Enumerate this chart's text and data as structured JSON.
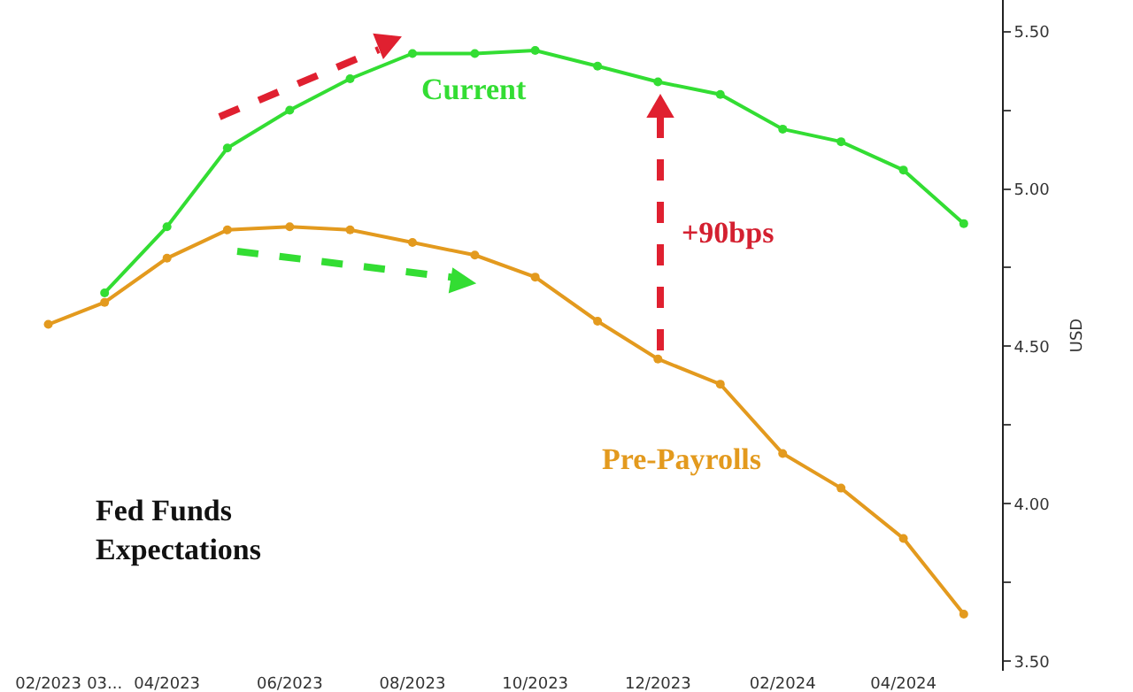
{
  "chart_data": {
    "type": "line",
    "ylabel": "USD",
    "x": [
      "2023-02",
      "2023-03",
      "2023-04",
      "2023-05",
      "2023-06",
      "2023-07",
      "2023-08",
      "2023-09",
      "2023-10",
      "2023-11",
      "2023-12",
      "2024-01",
      "2024-02",
      "2024-03",
      "2024-04",
      "2024-05"
    ],
    "series": [
      {
        "name": "Current",
        "color": "#33dd33",
        "values": [
          null,
          4.67,
          4.88,
          5.13,
          5.25,
          5.35,
          5.43,
          5.43,
          5.44,
          5.39,
          5.34,
          5.3,
          5.19,
          5.15,
          5.06,
          4.89
        ]
      },
      {
        "name": "Pre-Payrolls",
        "color": "#e39a1e",
        "values": [
          4.57,
          4.64,
          4.78,
          4.87,
          4.88,
          4.87,
          4.83,
          4.79,
          4.72,
          4.58,
          4.46,
          4.38,
          4.16,
          4.05,
          3.89,
          3.65
        ]
      }
    ],
    "annotations": [
      "+90bps",
      "Fed Funds Expectations"
    ],
    "xlim": [
      "2023-01-08",
      "2024-05-20"
    ],
    "xticks": [
      {
        "value": "2023-02",
        "label": "02/2023"
      },
      {
        "value": "2023-03",
        "label": "03..."
      },
      {
        "value": "2023-04",
        "label": "04/2023"
      },
      {
        "value": "2023-06",
        "label": "06/2023"
      },
      {
        "value": "2023-08",
        "label": "08/2023"
      },
      {
        "value": "2023-10",
        "label": "10/2023"
      },
      {
        "value": "2023-12",
        "label": "12/2023"
      },
      {
        "value": "2024-02",
        "label": "02/2024"
      },
      {
        "value": "2024-04",
        "label": "04/2024"
      }
    ],
    "ylim": [
      3.47,
      5.6
    ],
    "yticks": [
      {
        "value": 3.5,
        "label": "3.50"
      },
      {
        "value": 3.75,
        "label": null
      },
      {
        "value": 4.0,
        "label": "4.00"
      },
      {
        "value": 4.25,
        "label": null
      },
      {
        "value": 4.5,
        "label": "4.50"
      },
      {
        "value": 4.75,
        "label": null
      },
      {
        "value": 5.0,
        "label": "5.00"
      },
      {
        "value": 5.25,
        "label": null
      },
      {
        "value": 5.5,
        "label": "5.50"
      }
    ],
    "legend": false,
    "marker": "circle",
    "line_style": "solid"
  }
}
